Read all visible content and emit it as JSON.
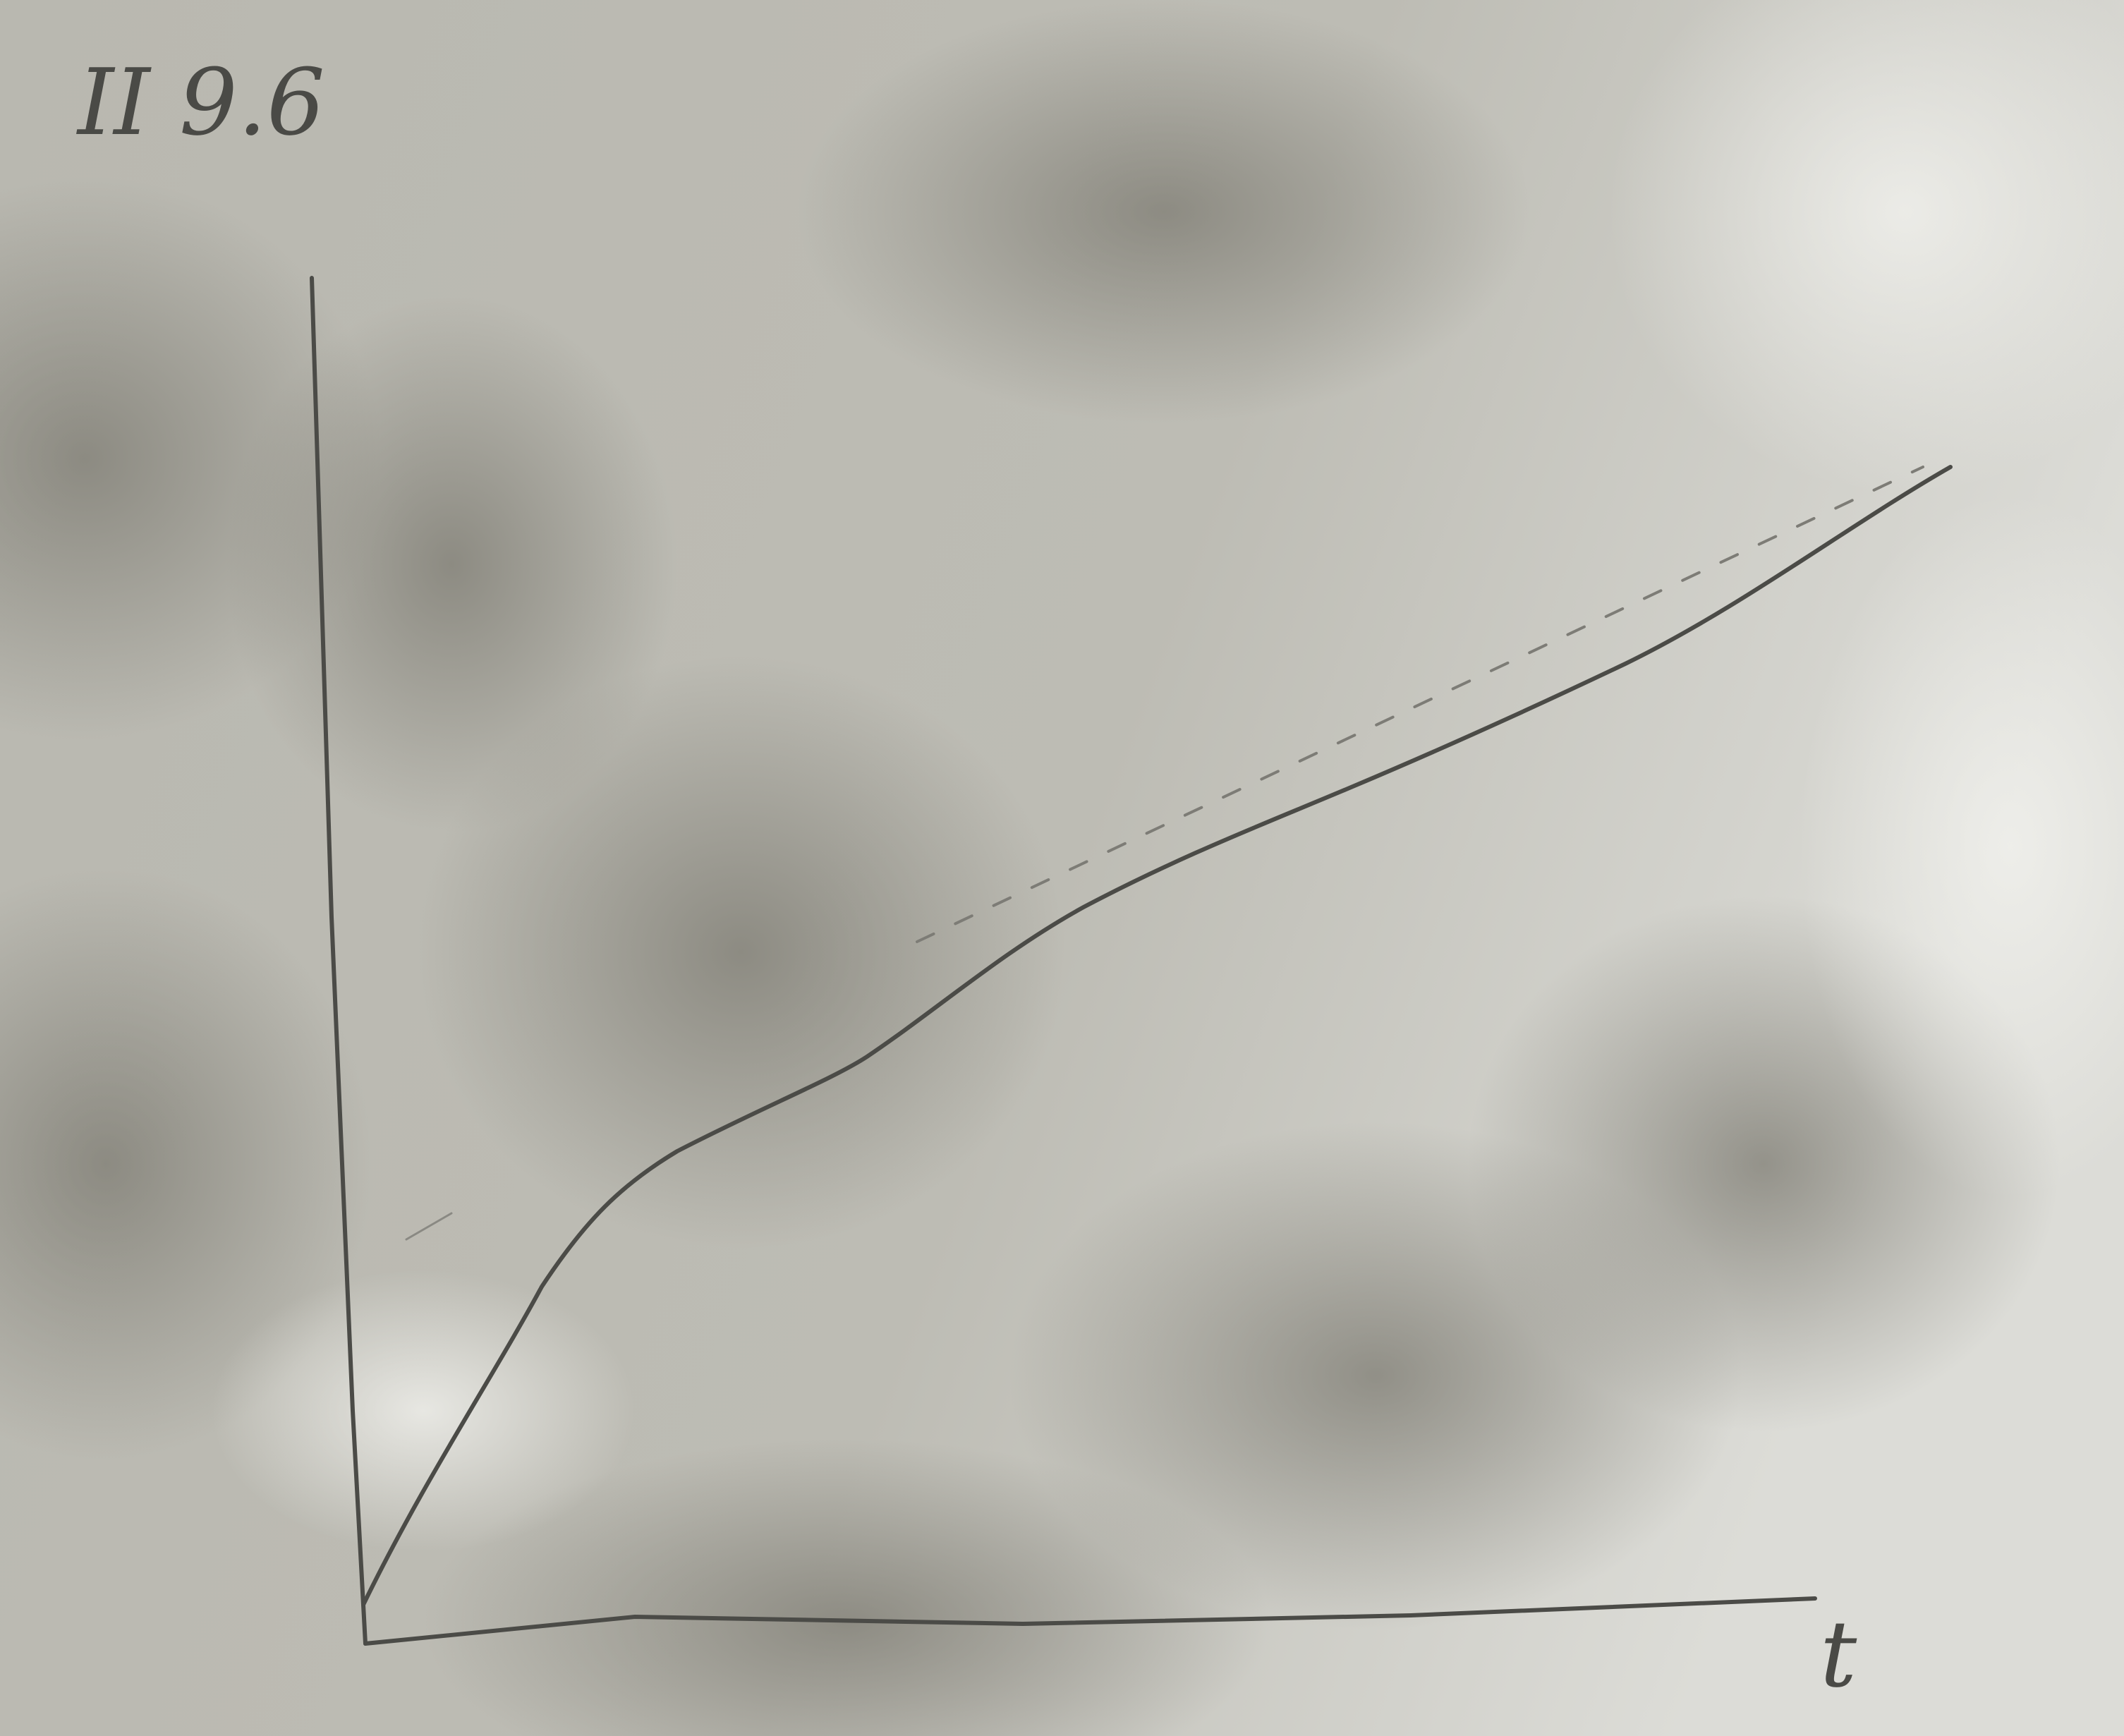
{
  "label": "II 9.6",
  "x_axis_label": "t"
}
